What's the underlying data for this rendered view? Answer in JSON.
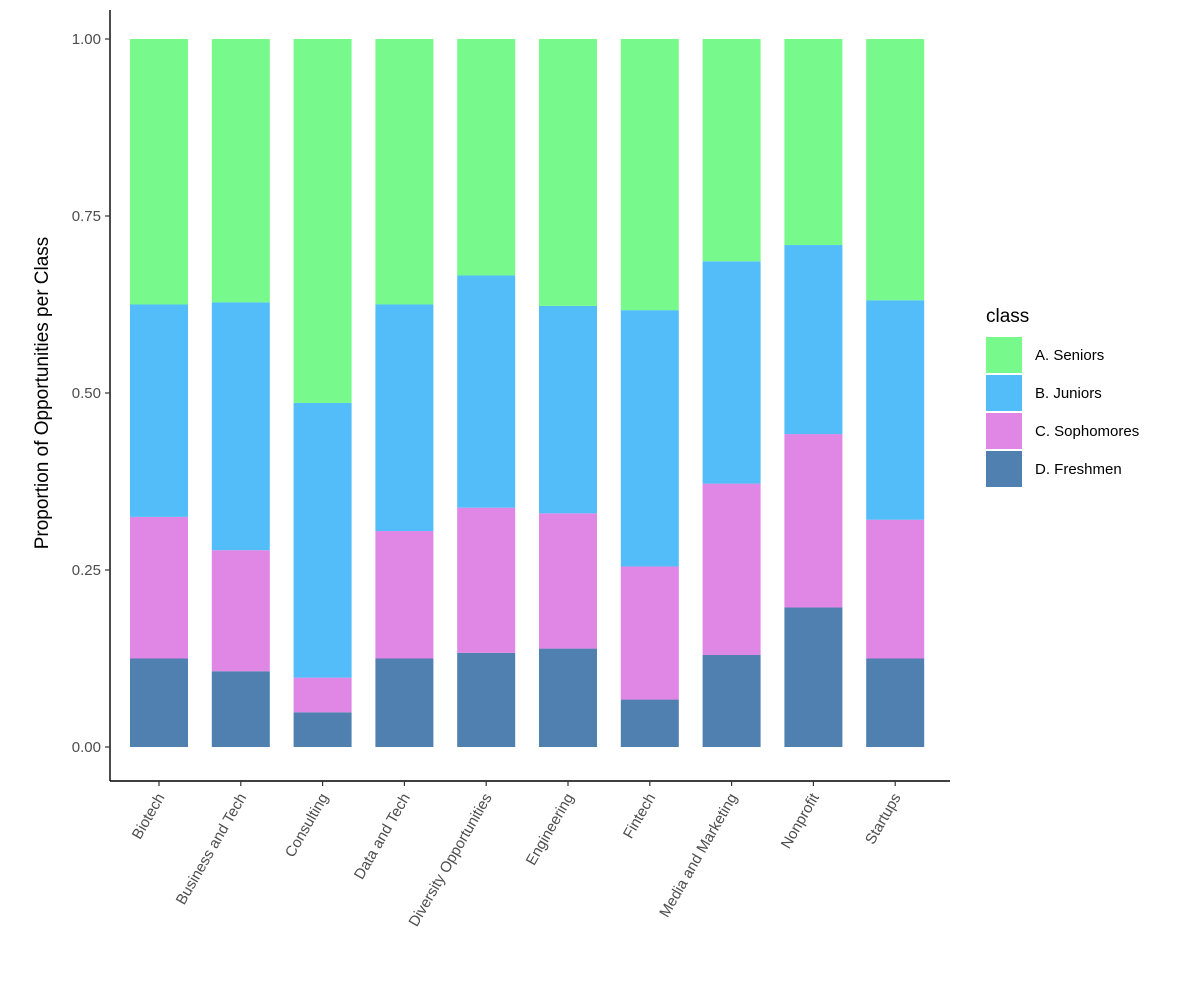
{
  "chart_data": {
    "type": "bar",
    "stacked": true,
    "orientation": "vertical",
    "title": "",
    "xlabel": "",
    "ylabel": "Proportion of Opportunities per Class",
    "ylim": [
      0,
      1
    ],
    "yticks": [
      "0.00",
      "0.25",
      "0.50",
      "0.75",
      "1.00"
    ],
    "categories": [
      "Biotech",
      "Business and Tech",
      "Consulting",
      "Data and Tech",
      "Diversity Opportunities",
      "Engineering",
      "Fintech",
      "Media and Marketing",
      "Nonprofit",
      "Startups"
    ],
    "legend_title": "class",
    "legend_position": "right",
    "grid": false,
    "series": [
      {
        "name": "D. Freshmen",
        "color": "#5080B0",
        "values": [
          0.125,
          0.107,
          0.049,
          0.125,
          0.133,
          0.139,
          0.067,
          0.13,
          0.197,
          0.125
        ]
      },
      {
        "name": "C. Sophomores",
        "color": "#E086E4",
        "values": [
          0.2,
          0.171,
          0.049,
          0.18,
          0.205,
          0.191,
          0.188,
          0.242,
          0.245,
          0.196
        ]
      },
      {
        "name": "B. Juniors",
        "color": "#52BDF9",
        "values": [
          0.3,
          0.35,
          0.388,
          0.32,
          0.328,
          0.293,
          0.362,
          0.314,
          0.267,
          0.31
        ]
      },
      {
        "name": "A. Seniors",
        "color": "#77F98C",
        "values": [
          0.375,
          0.372,
          0.514,
          0.375,
          0.334,
          0.377,
          0.383,
          0.314,
          0.291,
          0.369
        ]
      }
    ],
    "legend_order": [
      "A. Seniors",
      "B. Juniors",
      "C. Sophomores",
      "D. Freshmen"
    ]
  }
}
